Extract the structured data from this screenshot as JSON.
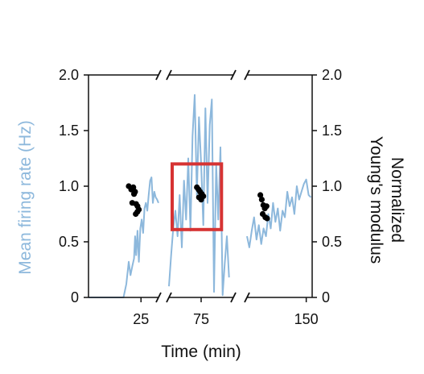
{
  "chart_data": {
    "type": "line",
    "xlabel": "Time (min)",
    "ylabel_left": "Mean firing rate (Hz)",
    "ylabel_right": "Normalized\nYoung's modulus",
    "ylim_left": [
      0,
      2.0
    ],
    "ylim_right": [
      0,
      2.0
    ],
    "y_ticks": [
      {
        "value": 0,
        "label": "0"
      },
      {
        "value": 0.5,
        "label": "0.5"
      },
      {
        "value": 1.0,
        "label": "1.0"
      },
      {
        "value": 1.5,
        "label": "1.5"
      },
      {
        "value": 2.0,
        "label": "2.0"
      }
    ],
    "x_tick_labels": [
      "25",
      "75",
      "150"
    ],
    "broken_x_axis": true,
    "grid": false,
    "colors": {
      "firing_rate": "#8db8dc",
      "modulus": "#000000",
      "highlight_box": "#d63333",
      "axis": "#111111"
    },
    "segments": [
      {
        "x_range": [
          10,
          30
        ],
        "x_ticks": [
          25
        ],
        "firing_rate": {
          "x": [
            10,
            14,
            18,
            20,
            20.8,
            21.5,
            22,
            22.5,
            23,
            23.3,
            23.6,
            24,
            24.4,
            24.8,
            25.2,
            25.6,
            26,
            26.4,
            26.8,
            27.2,
            27.6,
            28,
            28.4,
            28.8,
            29.2,
            29.6,
            30
          ],
          "y": [
            0,
            0,
            0,
            0,
            0.12,
            0.32,
            0.2,
            0.28,
            0.35,
            0.55,
            0.38,
            0.6,
            0.32,
            0.62,
            0.7,
            0.58,
            0.8,
            0.85,
            0.78,
            0.92,
            1.05,
            1.08,
            0.85,
            0.95,
            0.9,
            0.88,
            0.85
          ]
        },
        "modulus": {
          "x": [
            21.5,
            22.2,
            22.8,
            23.3,
            23.0,
            22.5,
            23.6,
            24.0,
            24.4,
            24.0,
            23.5
          ],
          "y": [
            1.0,
            0.97,
            0.99,
            0.95,
            0.93,
            0.85,
            0.84,
            0.82,
            0.79,
            0.77,
            0.75
          ]
        }
      },
      {
        "x_range": [
          60,
          90
        ],
        "x_ticks": [
          75
        ],
        "firing_rate": {
          "x": [
            60,
            61,
            62,
            63,
            64,
            65,
            66,
            67,
            68,
            69,
            70,
            71,
            72,
            73,
            74,
            75,
            76,
            77,
            78,
            79,
            80,
            81,
            82,
            83,
            84,
            85,
            86,
            87,
            88
          ],
          "y": [
            0.1,
            0.38,
            0.62,
            0.78,
            0.55,
            0.92,
            0.45,
            1.05,
            0.7,
            1.25,
            0.6,
            1.45,
            1.82,
            0.92,
            1.62,
            1.2,
            0.65,
            1.7,
            0.85,
            1.55,
            1.78,
            0.05,
            1.2,
            0.7,
            1.35,
            0.02,
            0.3,
            0.55,
            0.18
          ]
        },
        "modulus": {
          "x": [
            73.0,
            73.8,
            74.5,
            75.3,
            76.0,
            74.0,
            75.0
          ],
          "y": [
            0.99,
            0.97,
            0.95,
            0.93,
            0.91,
            0.9,
            0.88
          ]
        },
        "highlight_box": {
          "x": [
            61.5,
            84.5
          ],
          "y": [
            0.61,
            1.2
          ]
        }
      },
      {
        "x_range": [
          130,
          152
        ],
        "x_ticks": [
          150
        ],
        "firing_rate": {
          "x": [
            130,
            130.8,
            131.6,
            132.4,
            133.2,
            134,
            134.8,
            135.6,
            136.4,
            137.2,
            138,
            138.8,
            139.6,
            140.4,
            141.2,
            142,
            142.8,
            143.6,
            144.4,
            145.2,
            146,
            146.8,
            147.6,
            148.4,
            149.2,
            150,
            150.8,
            151.6
          ],
          "y": [
            0.55,
            0.45,
            0.6,
            0.72,
            0.52,
            0.65,
            0.48,
            0.62,
            0.55,
            0.75,
            0.62,
            0.85,
            0.68,
            0.8,
            0.6,
            0.78,
            0.72,
            0.95,
            0.82,
            0.9,
            0.75,
            1.0,
            0.88,
            0.95,
            1.02,
            1.06,
            0.92,
            0.9
          ]
        },
        "modulus": {
          "x": [
            134.5,
            135.0,
            135.5,
            136.0,
            136.6,
            135.3,
            136.2,
            136.8
          ],
          "y": [
            0.92,
            0.88,
            0.83,
            0.8,
            0.82,
            0.75,
            0.72,
            0.71
          ]
        }
      }
    ]
  }
}
